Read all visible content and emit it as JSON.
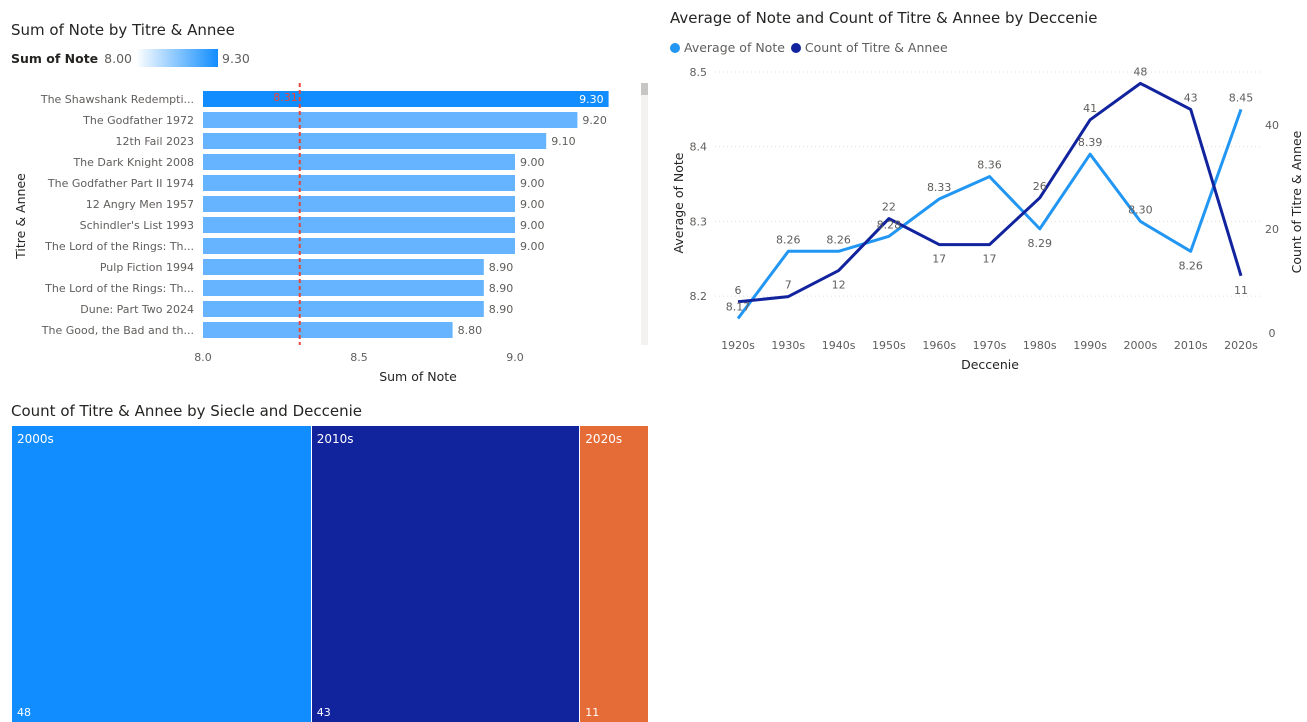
{
  "bar_visual": {
    "title": "Sum of Note by Titre & Annee",
    "color_scale": {
      "label": "Sum of Note",
      "min_label": "8.00",
      "max_label": "9.30"
    },
    "colors": {
      "light": "#66b3ff",
      "dark": "#118dff",
      "ref_line": "#e8463a",
      "scroll": "#c8c6c4"
    }
  },
  "line_visual": {
    "title": "Average of Note and Count of Titre & Annee by Deccenie",
    "colors": {
      "avg": "#2196f3",
      "count": "#12239e"
    }
  },
  "treemap_visual": {
    "title": "Count of Titre & Annee by Siecle and Deccenie"
  },
  "chart_data": [
    {
      "type": "bar",
      "orientation": "horizontal",
      "title": "Sum of Note by Titre & Annee",
      "xlabel": "Sum of Note",
      "ylabel": "Titre & Annee",
      "xlim": [
        8.0,
        9.3
      ],
      "xticks": [
        "8.0",
        "8.5",
        "9.0"
      ],
      "reference_line": {
        "value": 8.31,
        "label": "8.31"
      },
      "categories": [
        "The Shawshank Redempti...",
        "The Godfather 1972",
        "12th Fail 2023",
        "The Dark Knight 2008",
        "The Godfather Part II 1974",
        "12 Angry Men 1957",
        "Schindler's List 1993",
        "The Lord of the Rings: Th...",
        "Pulp Fiction 1994",
        "The Lord of the Rings: Th...",
        "Dune: Part Two 2024",
        "The Good, the Bad and th..."
      ],
      "values": [
        9.3,
        9.2,
        9.1,
        9.0,
        9.0,
        9.0,
        9.0,
        9.0,
        8.9,
        8.9,
        8.9,
        8.8
      ],
      "value_labels": [
        "9.30",
        "9.20",
        "9.10",
        "9.00",
        "9.00",
        "9.00",
        "9.00",
        "9.00",
        "8.90",
        "8.90",
        "8.90",
        "8.80"
      ]
    },
    {
      "type": "line",
      "title": "Average of Note and Count of Titre & Annee by Deccenie",
      "xlabel": "Deccenie",
      "ylabel": "Average of Note",
      "y2label": "Count of Titre & Annee",
      "categories": [
        "1920s",
        "1930s",
        "1940s",
        "1950s",
        "1960s",
        "1970s",
        "1980s",
        "1990s",
        "2000s",
        "2010s",
        "2020s"
      ],
      "ylim": [
        8.17,
        8.5
      ],
      "yticks": [
        "8.2",
        "8.3",
        "8.4",
        "8.5"
      ],
      "y2lim": [
        0,
        50
      ],
      "y2ticks": [
        "0",
        "20",
        "40"
      ],
      "series": [
        {
          "name": "Average of Note",
          "axis": "left",
          "values": [
            8.17,
            8.26,
            8.26,
            8.28,
            8.33,
            8.36,
            8.29,
            8.39,
            8.3,
            8.26,
            8.45
          ],
          "labels": [
            "8.17",
            "8.26",
            "8.26",
            "8.28",
            "8.33",
            "8.36",
            "8.29",
            "8.39",
            "8.30",
            "8.26",
            "8.45"
          ]
        },
        {
          "name": "Count of Titre & Annee",
          "axis": "right",
          "values": [
            6,
            7,
            12,
            22,
            17,
            17,
            26,
            41,
            48,
            43,
            11
          ],
          "labels": [
            "6",
            "7",
            "12",
            "22",
            "17",
            "17",
            "26",
            "41",
            "48",
            "43",
            "11"
          ]
        }
      ],
      "legend": "top-left"
    },
    {
      "type": "treemap",
      "title": "Count of Titre & Annee by Siecle and Deccenie",
      "categories": [
        "2000s",
        "2010s",
        "2020s"
      ],
      "values": [
        48,
        43,
        11
      ],
      "colors": [
        "#118dff",
        "#12239e",
        "#e66c37"
      ]
    }
  ]
}
